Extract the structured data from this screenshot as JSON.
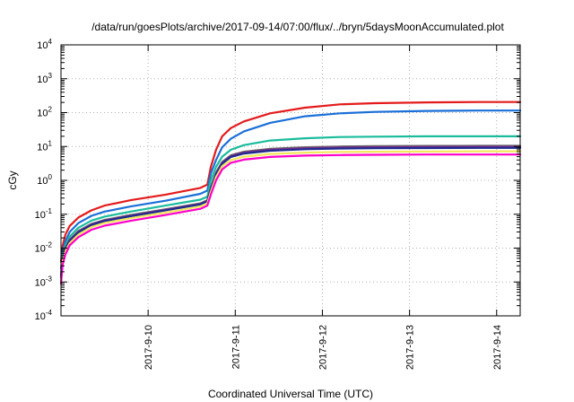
{
  "chart_data": {
    "type": "line",
    "title": "/data/run/goesPlots/archive/2017-09-14/07:00/flux/../bryn/5daysMoonAccumulated.plot",
    "xlabel": "Coordinated Universal Time (UTC)",
    "ylabel": "cGy",
    "yscale": "log",
    "ylim": [
      0.0001,
      10000
    ],
    "xlim": [
      0.0,
      5.27
    ],
    "grid": true,
    "x_ticks": [
      {
        "x": 1,
        "label": "2017-9-10"
      },
      {
        "x": 2,
        "label": "2017-9-11"
      },
      {
        "x": 3,
        "label": "2017-9-12"
      },
      {
        "x": 4,
        "label": "2017-9-13"
      },
      {
        "x": 5,
        "label": "2017-9-14"
      }
    ],
    "y_ticks": [
      {
        "value": 0.0001,
        "base": "10",
        "exp": "-4"
      },
      {
        "value": 0.001,
        "base": "10",
        "exp": "-3"
      },
      {
        "value": 0.01,
        "base": "10",
        "exp": "-2"
      },
      {
        "value": 0.1,
        "base": "10",
        "exp": "-1"
      },
      {
        "value": 1,
        "base": "10",
        "exp": "0"
      },
      {
        "value": 10,
        "base": "10",
        "exp": "1"
      },
      {
        "value": 100,
        "base": "10",
        "exp": "2"
      },
      {
        "value": 1000,
        "base": "10",
        "exp": "3"
      },
      {
        "value": 10000,
        "base": "10",
        "exp": "4"
      }
    ],
    "series": [
      {
        "color": "#e41a1c",
        "x": [
          0.0,
          0.02,
          0.05,
          0.1,
          0.2,
          0.35,
          0.5,
          0.8,
          1.2,
          1.6,
          1.68,
          1.72,
          1.78,
          1.85,
          1.95,
          2.1,
          2.4,
          2.8,
          3.2,
          3.6,
          4.2,
          4.8,
          5.27
        ],
        "y": [
          0.004,
          0.012,
          0.025,
          0.045,
          0.08,
          0.13,
          0.18,
          0.26,
          0.38,
          0.6,
          0.75,
          2.5,
          8,
          20,
          35,
          55,
          95,
          140,
          175,
          190,
          200,
          205,
          205
        ]
      },
      {
        "color": "#1a6fd8",
        "x": [
          0.0,
          0.02,
          0.05,
          0.1,
          0.2,
          0.35,
          0.5,
          0.8,
          1.2,
          1.6,
          1.68,
          1.72,
          1.78,
          1.85,
          1.95,
          2.1,
          2.4,
          2.8,
          3.2,
          3.6,
          4.2,
          4.8,
          5.27
        ],
        "y": [
          0.0025,
          0.008,
          0.016,
          0.03,
          0.055,
          0.09,
          0.12,
          0.17,
          0.25,
          0.4,
          0.5,
          1.6,
          4,
          9.5,
          17,
          28,
          50,
          78,
          95,
          105,
          112,
          115,
          115
        ]
      },
      {
        "color": "#1abc9c",
        "x": [
          0.0,
          0.02,
          0.05,
          0.1,
          0.2,
          0.35,
          0.5,
          0.8,
          1.2,
          1.6,
          1.68,
          1.72,
          1.78,
          1.85,
          1.95,
          2.1,
          2.4,
          2.8,
          3.2,
          3.6,
          4.2,
          4.8,
          5.27
        ],
        "y": [
          0.0018,
          0.006,
          0.012,
          0.022,
          0.04,
          0.065,
          0.085,
          0.12,
          0.18,
          0.27,
          0.33,
          1.0,
          2.5,
          5,
          8,
          11,
          15,
          17.5,
          19,
          19.5,
          20,
          20,
          20
        ]
      },
      {
        "color": "#666666",
        "x": [
          0.0,
          0.02,
          0.05,
          0.1,
          0.2,
          0.35,
          0.5,
          0.8,
          1.2,
          1.6,
          1.68,
          1.72,
          1.78,
          1.85,
          1.95,
          2.1,
          2.4,
          2.8,
          3.2,
          3.6,
          4.2,
          4.8,
          5.27
        ],
        "y": [
          0.0015,
          0.005,
          0.01,
          0.018,
          0.032,
          0.052,
          0.068,
          0.095,
          0.14,
          0.21,
          0.26,
          0.6,
          1.7,
          3.5,
          5.5,
          7,
          8.5,
          9.5,
          10,
          10.2,
          10.4,
          10.5,
          10.5
        ]
      },
      {
        "color": "#7b2d8e",
        "x": [
          0.0,
          0.02,
          0.05,
          0.1,
          0.2,
          0.35,
          0.5,
          0.8,
          1.2,
          1.6,
          1.68,
          1.72,
          1.78,
          1.85,
          1.95,
          2.1,
          2.4,
          2.8,
          3.2,
          3.6,
          4.2,
          4.8,
          5.27
        ],
        "y": [
          0.0014,
          0.0048,
          0.0095,
          0.017,
          0.03,
          0.05,
          0.065,
          0.09,
          0.135,
          0.2,
          0.25,
          0.58,
          1.6,
          3.3,
          5.2,
          6.6,
          8.0,
          8.9,
          9.3,
          9.5,
          9.7,
          9.8,
          9.8
        ]
      },
      {
        "color": "#1f2a8f",
        "x": [
          0.0,
          0.02,
          0.05,
          0.1,
          0.2,
          0.35,
          0.5,
          0.8,
          1.2,
          1.6,
          1.68,
          1.72,
          1.78,
          1.85,
          1.95,
          2.1,
          2.4,
          2.8,
          3.2,
          3.6,
          4.2,
          4.8,
          5.27
        ],
        "y": [
          0.0013,
          0.0046,
          0.009,
          0.016,
          0.029,
          0.048,
          0.063,
          0.087,
          0.13,
          0.195,
          0.24,
          0.55,
          1.5,
          3.1,
          4.9,
          6.2,
          7.5,
          8.3,
          8.7,
          8.9,
          9.0,
          9.1,
          9.1
        ]
      },
      {
        "color": "#f2e85c",
        "x": [
          0.0,
          0.02,
          0.05,
          0.1,
          0.2,
          0.35,
          0.5,
          0.8,
          1.2,
          1.6,
          1.68,
          1.72,
          1.78,
          1.85,
          1.95,
          2.1,
          2.4,
          2.8,
          3.2,
          3.6,
          4.2,
          4.8,
          5.27
        ],
        "y": [
          0.0011,
          0.004,
          0.008,
          0.014,
          0.025,
          0.042,
          0.055,
          0.076,
          0.112,
          0.17,
          0.21,
          0.46,
          1.25,
          2.6,
          4.0,
          5.0,
          6.0,
          6.6,
          6.9,
          7.0,
          7.1,
          7.2,
          7.2
        ]
      },
      {
        "color": "#ff00cc",
        "x": [
          0.0,
          0.02,
          0.05,
          0.1,
          0.2,
          0.35,
          0.5,
          0.8,
          1.2,
          1.6,
          1.68,
          1.72,
          1.78,
          1.85,
          1.95,
          2.1,
          2.4,
          2.8,
          3.2,
          3.6,
          4.2,
          4.8,
          5.27
        ],
        "y": [
          0.0009,
          0.0033,
          0.0065,
          0.012,
          0.021,
          0.035,
          0.046,
          0.064,
          0.095,
          0.145,
          0.18,
          0.38,
          1.0,
          2.1,
          3.3,
          4.1,
          4.9,
          5.4,
          5.6,
          5.7,
          5.8,
          5.8,
          5.8
        ]
      }
    ]
  }
}
